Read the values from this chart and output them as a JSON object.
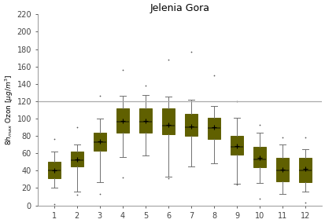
{
  "title": "Jelenia Gora",
  "ylim": [
    0,
    220
  ],
  "yticks": [
    0,
    20,
    40,
    60,
    80,
    100,
    120,
    140,
    160,
    180,
    200,
    220
  ],
  "xticks": [
    1,
    2,
    3,
    4,
    5,
    6,
    7,
    8,
    9,
    10,
    11,
    12
  ],
  "hline_y": 120,
  "hline_color": "#aaaaaa",
  "box_facecolor": "#808000",
  "box_edgecolor": "#606000",
  "median_color": "#303000",
  "whisker_color": "#707070",
  "cap_color": "#707070",
  "flier_color": "#555555",
  "mean_color": "#000000",
  "boxes": [
    {
      "month": 1,
      "q1": 31,
      "median": 40,
      "q3": 50,
      "mean": 40,
      "whislo": 20,
      "whishi": 62,
      "fliers_high": [
        76
      ],
      "fliers_low": [
        1
      ]
    },
    {
      "month": 2,
      "q1": 45,
      "median": 52,
      "q3": 62,
      "mean": 53,
      "whislo": 16,
      "whishi": 70,
      "fliers_high": [
        90
      ],
      "fliers_low": [
        12
      ]
    },
    {
      "month": 3,
      "q1": 63,
      "median": 73,
      "q3": 84,
      "mean": 74,
      "whislo": 27,
      "whishi": 100,
      "fliers_high": [
        126
      ],
      "fliers_low": [
        13
      ]
    },
    {
      "month": 4,
      "q1": 84,
      "median": 96,
      "q3": 112,
      "mean": 97,
      "whislo": 56,
      "whishi": 126,
      "fliers_high": [
        156
      ],
      "fliers_low": [
        32
      ]
    },
    {
      "month": 5,
      "q1": 84,
      "median": 96,
      "q3": 112,
      "mean": 97,
      "whislo": 57,
      "whishi": 127,
      "fliers_high": [
        138
      ],
      "fliers_low": []
    },
    {
      "month": 6,
      "q1": 82,
      "median": 92,
      "q3": 112,
      "mean": 93,
      "whislo": 33,
      "whishi": 125,
      "fliers_high": [
        168
      ],
      "fliers_low": [
        31
      ]
    },
    {
      "month": 7,
      "q1": 80,
      "median": 90,
      "q3": 105,
      "mean": 91,
      "whislo": 45,
      "whishi": 122,
      "fliers_high": [
        177
      ],
      "fliers_low": []
    },
    {
      "month": 8,
      "q1": 76,
      "median": 89,
      "q3": 101,
      "mean": 90,
      "whislo": 48,
      "whishi": 114,
      "fliers_high": [
        150
      ],
      "fliers_low": []
    },
    {
      "month": 9,
      "q1": 58,
      "median": 67,
      "q3": 80,
      "mean": 68,
      "whislo": 25,
      "whishi": 101,
      "fliers_high": [
        120
      ],
      "fliers_low": [
        24
      ]
    },
    {
      "month": 10,
      "q1": 44,
      "median": 53,
      "q3": 67,
      "mean": 55,
      "whislo": 26,
      "whishi": 84,
      "fliers_high": [
        93
      ],
      "fliers_low": [
        8
      ]
    },
    {
      "month": 11,
      "q1": 28,
      "median": 40,
      "q3": 55,
      "mean": 41,
      "whislo": 13,
      "whishi": 70,
      "fliers_high": [
        78
      ],
      "fliers_low": []
    },
    {
      "month": 12,
      "q1": 27,
      "median": 40,
      "q3": 55,
      "mean": 42,
      "whislo": 16,
      "whishi": 65,
      "fliers_high": [
        78
      ],
      "fliers_low": [
        3
      ]
    }
  ]
}
